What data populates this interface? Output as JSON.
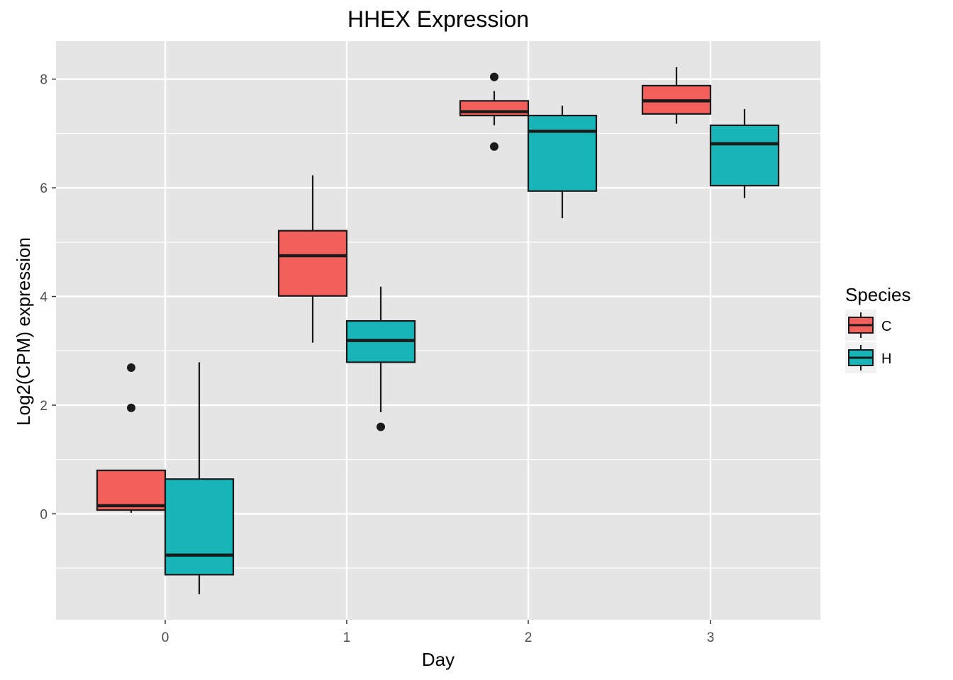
{
  "chart_data": {
    "type": "box",
    "title": "HHEX Expression",
    "xlabel": "Day",
    "ylabel": "Log2(CPM) expression",
    "categories": [
      "0",
      "1",
      "2",
      "3"
    ],
    "ylim": [
      -1.95,
      8.7
    ],
    "y_ticks": [
      "0",
      "2",
      "4",
      "6",
      "8"
    ],
    "grid": true,
    "legend": {
      "title": "Species",
      "position": "right"
    },
    "colors": {
      "panel": "#e5e5e5",
      "grid": "#ffffff",
      "C": "#f35f5a",
      "H": "#17b5b8",
      "line": "#1a1a1a"
    },
    "series": [
      {
        "name": "C",
        "boxes": [
          {
            "category": "0",
            "whisker_low": 0.02,
            "q1": 0.07,
            "median": 0.15,
            "q3": 0.8,
            "whisker_high": 0.8,
            "outliers": [
              1.95,
              2.69
            ]
          },
          {
            "category": "1",
            "whisker_low": 3.15,
            "q1": 4.01,
            "median": 4.75,
            "q3": 5.21,
            "whisker_high": 6.23,
            "outliers": []
          },
          {
            "category": "2",
            "whisker_low": 7.15,
            "q1": 7.33,
            "median": 7.4,
            "q3": 7.6,
            "whisker_high": 7.78,
            "outliers": [
              6.76,
              8.04
            ]
          },
          {
            "category": "3",
            "whisker_low": 7.18,
            "q1": 7.36,
            "median": 7.6,
            "q3": 7.88,
            "whisker_high": 8.22,
            "outliers": []
          }
        ]
      },
      {
        "name": "H",
        "boxes": [
          {
            "category": "0",
            "whisker_low": -1.48,
            "q1": -1.12,
            "median": -0.76,
            "q3": 0.64,
            "whisker_high": 2.79,
            "outliers": []
          },
          {
            "category": "1",
            "whisker_low": 1.87,
            "q1": 2.79,
            "median": 3.19,
            "q3": 3.55,
            "whisker_high": 4.18,
            "outliers": [
              1.6
            ]
          },
          {
            "category": "2",
            "whisker_low": 5.44,
            "q1": 5.94,
            "median": 7.04,
            "q3": 7.33,
            "whisker_high": 7.51,
            "outliers": []
          },
          {
            "category": "3",
            "whisker_low": 5.81,
            "q1": 6.04,
            "median": 6.81,
            "q3": 7.15,
            "whisker_high": 7.45,
            "outliers": []
          }
        ]
      }
    ]
  }
}
